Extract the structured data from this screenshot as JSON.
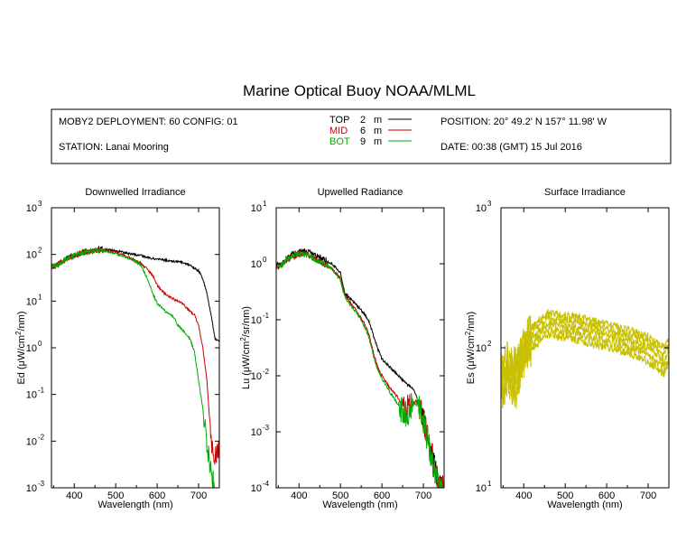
{
  "title": "Marine Optical Buoy NOAA/MLML",
  "info": {
    "deployment": "MOBY2 DEPLOYMENT: 60 CONFIG: 01",
    "station": "STATION: Lanai Mooring",
    "position": "POSITION: 20° 49.2' N   157° 11.98' W",
    "date": "DATE: 00:38 (GMT) 15 Jul 2016",
    "legend": [
      {
        "name": "TOP",
        "depth": "2",
        "unit": "m",
        "color": "#000000"
      },
      {
        "name": "MID",
        "depth": "6",
        "unit": "m",
        "color": "#cc0000"
      },
      {
        "name": "BOT",
        "depth": "9",
        "unit": "m",
        "color": "#00aa00"
      }
    ]
  },
  "colors": {
    "top": "#000000",
    "mid": "#cc0000",
    "bot": "#00aa00",
    "surface": "#c8c000"
  },
  "chart_data": [
    {
      "type": "line",
      "title": "Downwelled Irradiance",
      "xlabel": "Wavelength (nm)",
      "ylabel_prefix": "Ed  (μW/cm",
      "ylabel_sup": "2",
      "ylabel_suffix": "/nm)",
      "xlim": [
        345,
        750
      ],
      "ylim": [
        0.001,
        1000
      ],
      "yscale": "log",
      "xticks": [
        400,
        500,
        600,
        700
      ],
      "yticks": [
        {
          "value": 0.001,
          "exp": "-3"
        },
        {
          "value": 0.01,
          "exp": "-2"
        },
        {
          "value": 0.1,
          "exp": "-1"
        },
        {
          "value": 1,
          "exp": "0"
        },
        {
          "value": 10,
          "exp": "1"
        },
        {
          "value": 100,
          "exp": "2"
        },
        {
          "value": 1000,
          "exp": "3"
        }
      ],
      "series": [
        {
          "name": "TOP",
          "color": "#000000",
          "x": [
            345,
            360,
            380,
            400,
            420,
            440,
            460,
            480,
            500,
            520,
            540,
            560,
            580,
            600,
            620,
            640,
            660,
            680,
            700,
            710,
            720,
            730,
            740,
            750
          ],
          "y": [
            55,
            60,
            80,
            95,
            110,
            120,
            130,
            125,
            120,
            110,
            100,
            95,
            85,
            80,
            75,
            72,
            68,
            58,
            45,
            30,
            15,
            5,
            1.5,
            1.4
          ]
        },
        {
          "name": "MID",
          "color": "#cc0000",
          "x": [
            345,
            360,
            380,
            400,
            420,
            440,
            460,
            480,
            500,
            520,
            540,
            560,
            580,
            590,
            600,
            620,
            640,
            660,
            680,
            690,
            700,
            710,
            720,
            730,
            740,
            750
          ],
          "y": [
            55,
            60,
            80,
            95,
            110,
            118,
            125,
            118,
            110,
            95,
            80,
            65,
            45,
            35,
            22,
            14,
            11,
            9,
            6,
            5,
            3,
            1,
            0.2,
            0.01,
            0.005,
            0.006
          ]
        },
        {
          "name": "BOT",
          "color": "#00aa00",
          "x": [
            345,
            360,
            380,
            400,
            420,
            440,
            460,
            480,
            500,
            520,
            540,
            560,
            570,
            580,
            590,
            600,
            620,
            640,
            650,
            660,
            680,
            690,
            700,
            710,
            720,
            730,
            740
          ],
          "y": [
            55,
            60,
            80,
            95,
            110,
            118,
            122,
            115,
            105,
            90,
            75,
            60,
            40,
            25,
            14,
            9,
            6,
            4.5,
            3,
            2.5,
            1.5,
            0.8,
            0.2,
            0.05,
            0.008,
            0.002,
            0.001
          ]
        }
      ]
    },
    {
      "type": "line",
      "title": "Upwelled Radiance",
      "xlabel": "Wavelength (nm)",
      "ylabel_prefix": "Lu  (μW/cm",
      "ylabel_sup": "2",
      "ylabel_suffix": "/sr/nm)",
      "xlim": [
        345,
        750
      ],
      "ylim": [
        0.0001,
        10
      ],
      "yscale": "log",
      "xticks": [
        400,
        500,
        600,
        700
      ],
      "yticks": [
        {
          "value": 0.0001,
          "exp": "-4"
        },
        {
          "value": 0.001,
          "exp": "-3"
        },
        {
          "value": 0.01,
          "exp": "-2"
        },
        {
          "value": 0.1,
          "exp": "-1"
        },
        {
          "value": 1,
          "exp": "0"
        },
        {
          "value": 10,
          "exp": "1"
        }
      ],
      "series": [
        {
          "name": "TOP",
          "color": "#000000",
          "x": [
            345,
            360,
            380,
            400,
            420,
            440,
            460,
            480,
            500,
            510,
            520,
            540,
            560,
            570,
            580,
            590,
            600,
            620,
            640,
            660,
            670,
            680,
            690,
            700,
            710,
            720,
            730,
            740,
            750
          ],
          "y": [
            0.9,
            1.0,
            1.4,
            1.6,
            1.7,
            1.4,
            1.2,
            1.0,
            0.7,
            0.3,
            0.25,
            0.18,
            0.12,
            0.09,
            0.05,
            0.03,
            0.02,
            0.014,
            0.01,
            0.007,
            0.0065,
            0.005,
            0.003,
            0.0015,
            0.0008,
            0.0004,
            0.0002,
            0.0001,
            0.0001
          ]
        },
        {
          "name": "MID",
          "color": "#cc0000",
          "x": [
            345,
            360,
            380,
            400,
            420,
            440,
            460,
            480,
            500,
            510,
            520,
            540,
            560,
            570,
            580,
            590,
            600,
            620,
            640,
            650,
            660,
            670,
            680,
            690,
            700,
            710,
            720,
            730,
            740,
            750
          ],
          "y": [
            0.9,
            1.0,
            1.3,
            1.5,
            1.5,
            1.2,
            1.0,
            0.8,
            0.55,
            0.28,
            0.22,
            0.14,
            0.08,
            0.05,
            0.025,
            0.014,
            0.01,
            0.006,
            0.004,
            0.003,
            0.0025,
            0.003,
            0.0035,
            0.003,
            0.0018,
            0.0008,
            0.0004,
            0.0002,
            0.0001,
            0.0001
          ]
        },
        {
          "name": "BOT",
          "color": "#00aa00",
          "x": [
            345,
            360,
            380,
            400,
            420,
            440,
            460,
            480,
            500,
            510,
            520,
            540,
            560,
            570,
            580,
            590,
            600,
            620,
            640,
            650,
            660,
            670,
            680,
            690,
            700,
            710,
            720,
            730,
            740,
            750
          ],
          "y": [
            0.9,
            1.0,
            1.3,
            1.5,
            1.4,
            1.2,
            1.0,
            0.8,
            0.5,
            0.26,
            0.2,
            0.13,
            0.07,
            0.045,
            0.022,
            0.013,
            0.009,
            0.005,
            0.003,
            0.0024,
            0.002,
            0.0028,
            0.0032,
            0.0026,
            0.0015,
            0.0007,
            0.00035,
            0.00018,
            0.0001,
            0.0001
          ]
        }
      ]
    },
    {
      "type": "line",
      "title": "Surface Irradiance",
      "xlabel": "Wavelength (nm)",
      "ylabel_prefix": "Es  (μW/cm",
      "ylabel_sup": "2",
      "ylabel_suffix": "/nm)",
      "xlim": [
        345,
        750
      ],
      "ylim": [
        10,
        1000
      ],
      "yscale": "log",
      "xticks": [
        400,
        500,
        600,
        700
      ],
      "yticks": [
        {
          "value": 10,
          "exp": "1"
        },
        {
          "value": 100,
          "exp": "2"
        },
        {
          "value": 1000,
          "exp": "3"
        }
      ],
      "series": [
        {
          "name": "",
          "color": "#c8c000",
          "x": [
            345,
            360,
            380,
            400,
            420,
            440,
            460,
            480,
            500,
            520,
            540,
            560,
            580,
            600,
            620,
            640,
            660,
            680,
            700,
            720,
            740,
            750
          ],
          "y": [
            75,
            88,
            80,
            115,
            140,
            160,
            180,
            172,
            170,
            168,
            163,
            158,
            152,
            148,
            142,
            138,
            132,
            128,
            120,
            110,
            100,
            115
          ]
        },
        {
          "name": "",
          "color": "#c8c000",
          "x": [
            345,
            360,
            380,
            400,
            420,
            440,
            460,
            480,
            500,
            520,
            540,
            560,
            580,
            600,
            620,
            640,
            660,
            680,
            700,
            720,
            740,
            750
          ],
          "y": [
            65,
            78,
            70,
            105,
            128,
            148,
            165,
            158,
            156,
            154,
            150,
            145,
            140,
            136,
            130,
            126,
            121,
            117,
            110,
            100,
            90,
            105
          ]
        },
        {
          "name": "",
          "color": "#c8c000",
          "x": [
            345,
            360,
            380,
            400,
            420,
            440,
            460,
            480,
            500,
            520,
            540,
            560,
            580,
            600,
            620,
            640,
            660,
            680,
            700,
            720,
            740,
            750
          ],
          "y": [
            58,
            68,
            60,
            96,
            118,
            135,
            150,
            144,
            142,
            140,
            136,
            132,
            128,
            124,
            119,
            115,
            110,
            106,
            100,
            90,
            80,
            95
          ]
        },
        {
          "name": "",
          "color": "#c8c000",
          "x": [
            345,
            360,
            380,
            400,
            420,
            440,
            460,
            480,
            500,
            520,
            540,
            560,
            580,
            600,
            620,
            640,
            660,
            680,
            700,
            720,
            740,
            750
          ],
          "y": [
            52,
            60,
            52,
            88,
            108,
            124,
            138,
            132,
            130,
            128,
            124,
            120,
            116,
            112,
            108,
            104,
            100,
            96,
            90,
            80,
            72,
            86
          ]
        },
        {
          "name": "",
          "color": "#c8c000",
          "x": [
            345,
            360,
            380,
            400,
            420,
            440,
            460,
            480,
            500,
            520,
            540,
            560,
            580,
            600,
            620,
            640,
            660,
            680,
            700,
            720,
            740,
            750
          ],
          "y": [
            45,
            52,
            45,
            80,
            98,
            112,
            126,
            120,
            118,
            116,
            112,
            108,
            105,
            101,
            97,
            94,
            90,
            86,
            80,
            72,
            65,
            78
          ]
        }
      ]
    }
  ]
}
